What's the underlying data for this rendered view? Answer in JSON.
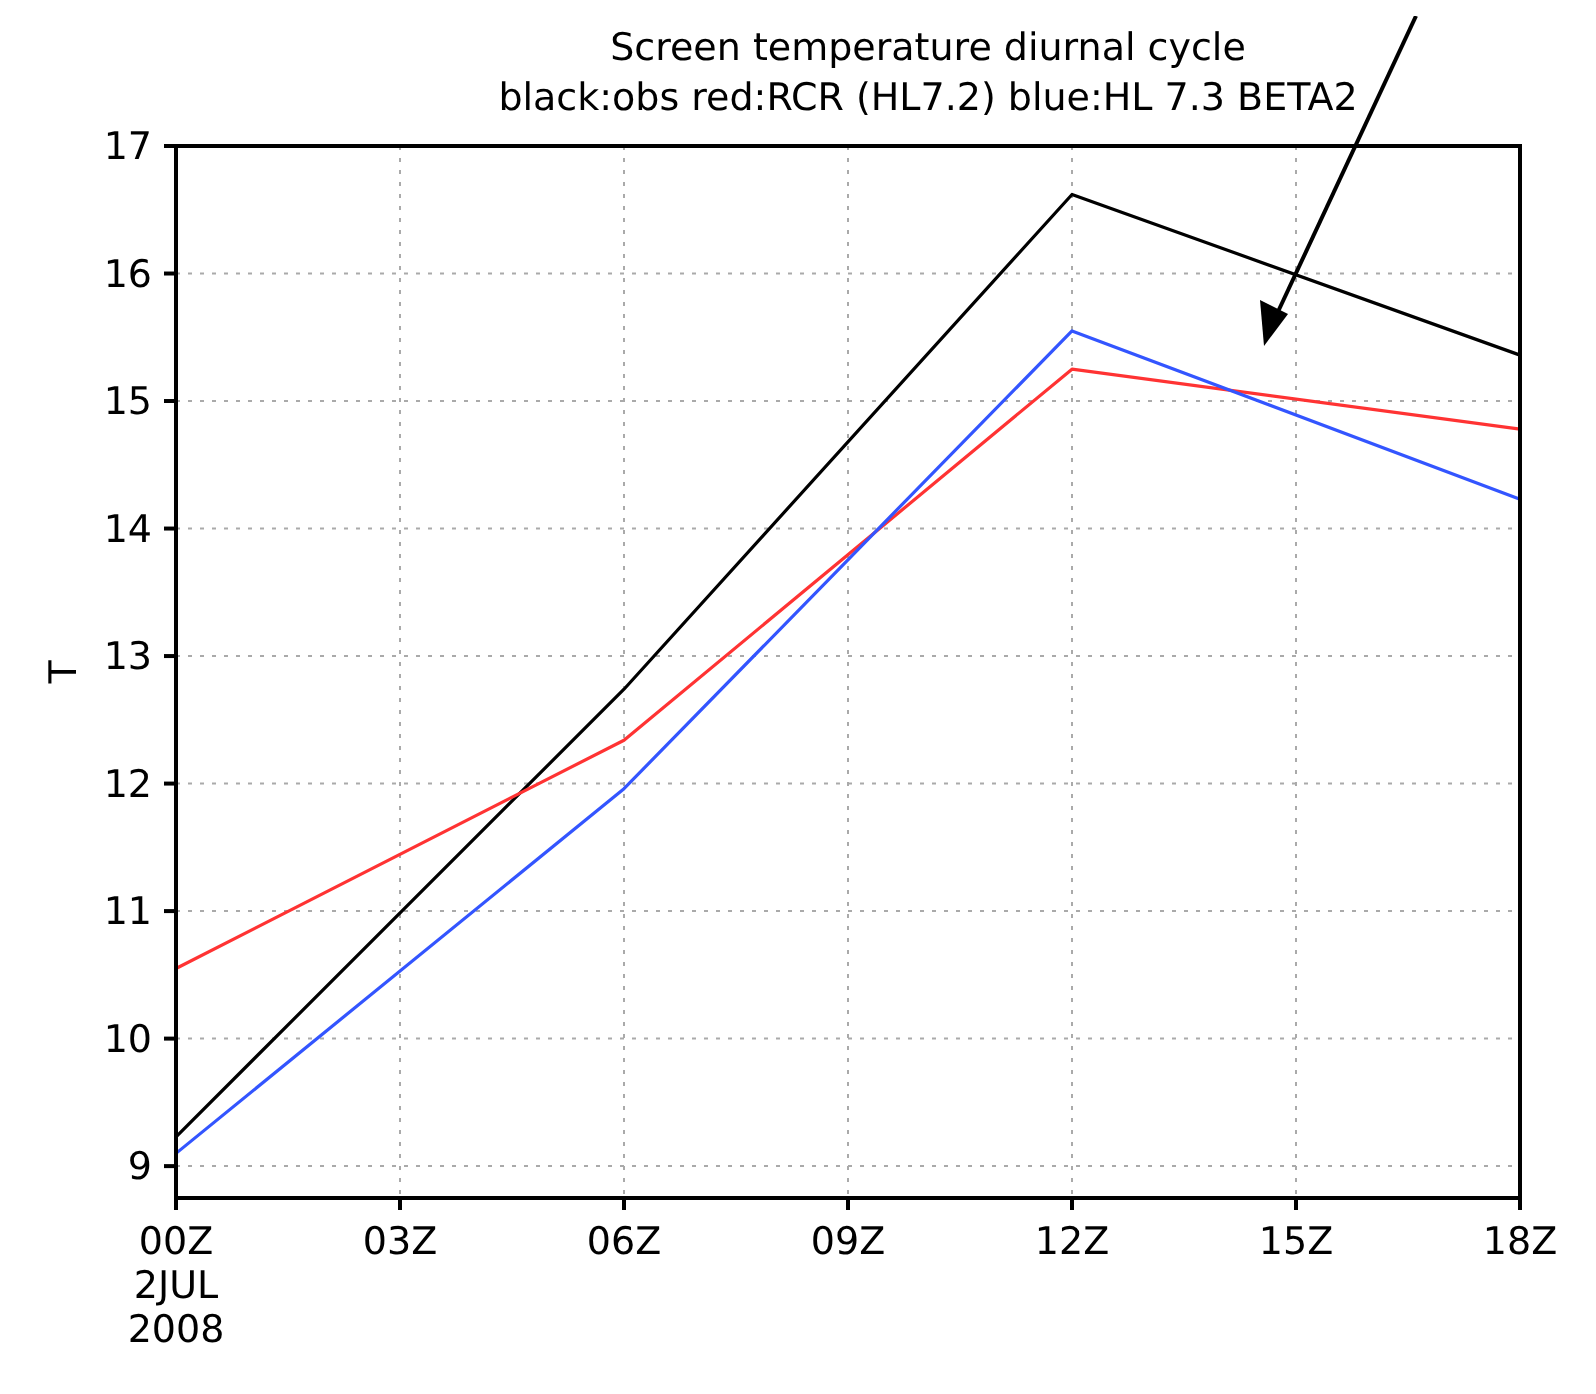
{
  "chart_data": {
    "type": "line",
    "title": "Screen temperature diurnal cycle",
    "subtitle": "black:obs red:RCR (HL7.2) blue:HL 7.3 BETA2",
    "ylabel": "T",
    "x": [
      0,
      6,
      12,
      18
    ],
    "series": [
      {
        "color": "#000000",
        "values": [
          9.23,
          12.74,
          16.62,
          15.36
        ]
      },
      {
        "color": "#ff3333",
        "values": [
          10.55,
          12.34,
          15.25,
          14.78
        ]
      },
      {
        "color": "#3355ff",
        "values": [
          9.1,
          11.96,
          15.55,
          14.23
        ]
      }
    ],
    "xlim": [
      0,
      18
    ],
    "xticks": [
      {
        "value": 0,
        "label": "00Z"
      },
      {
        "value": 3,
        "label": "03Z"
      },
      {
        "value": 6,
        "label": "06Z"
      },
      {
        "value": 9,
        "label": "09Z"
      },
      {
        "value": 12,
        "label": "12Z"
      },
      {
        "value": 15,
        "label": "15Z"
      },
      {
        "value": 18,
        "label": "18Z"
      }
    ],
    "ylim": [
      8.75,
      17
    ],
    "yticks": [
      9,
      10,
      11,
      12,
      13,
      14,
      15,
      16,
      17
    ],
    "annotations": [
      "2JUL",
      "2008"
    ],
    "grid": true,
    "marker": "none",
    "line_style": "solid"
  }
}
